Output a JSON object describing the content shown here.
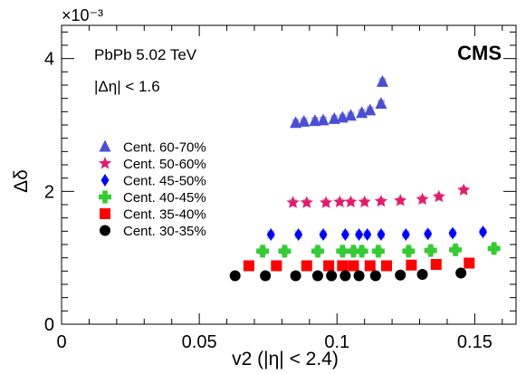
{
  "chart_data": {
    "type": "scatter",
    "xlabel": "v2 (|η| < 2.4)",
    "ylabel": "Δδ",
    "y_multiplier": "×10⁻³",
    "xlim": [
      0,
      0.165
    ],
    "ylim": [
      0,
      4.5
    ],
    "x_ticks": [
      0,
      0.05,
      0.1,
      0.15
    ],
    "x_tick_labels": [
      "0",
      "0.05",
      "0.1",
      "0.15"
    ],
    "y_ticks": [
      0,
      2,
      4
    ],
    "y_tick_labels": [
      "0",
      "2",
      "4"
    ],
    "grid": false,
    "legend_position": "left",
    "annotations": [
      "PbPb 5.02 TeV",
      "|Δη| < 1.6"
    ],
    "experiment_label": "CMS",
    "series": [
      {
        "name": "Cent. 60-70%",
        "marker": "triangle",
        "color": "#4a4ed6",
        "x": [
          0.085,
          0.088,
          0.092,
          0.095,
          0.099,
          0.102,
          0.105,
          0.109,
          0.112,
          0.116,
          0.1165
        ],
        "y": [
          3.03,
          3.05,
          3.06,
          3.07,
          3.09,
          3.11,
          3.14,
          3.18,
          3.22,
          3.32,
          3.65
        ]
      },
      {
        "name": "Cent. 50-60%",
        "marker": "star",
        "color": "#e6196e",
        "x": [
          0.084,
          0.089,
          0.096,
          0.101,
          0.105,
          0.11,
          0.116,
          0.123,
          0.131,
          0.137,
          0.146
        ],
        "y": [
          1.83,
          1.83,
          1.83,
          1.84,
          1.84,
          1.84,
          1.85,
          1.86,
          1.88,
          1.92,
          2.02
        ]
      },
      {
        "name": "Cent. 45-50%",
        "marker": "diamond",
        "color": "#0000ff",
        "x": [
          0.076,
          0.086,
          0.095,
          0.103,
          0.108,
          0.111,
          0.116,
          0.125,
          0.133,
          0.142,
          0.153
        ],
        "y": [
          1.35,
          1.35,
          1.35,
          1.35,
          1.35,
          1.35,
          1.35,
          1.35,
          1.36,
          1.37,
          1.39
        ]
      },
      {
        "name": "Cent. 40-45%",
        "marker": "cross",
        "color": "#33cc33",
        "x": [
          0.073,
          0.081,
          0.093,
          0.102,
          0.106,
          0.109,
          0.115,
          0.126,
          0.134,
          0.143,
          0.157
        ],
        "y": [
          1.1,
          1.1,
          1.1,
          1.1,
          1.1,
          1.1,
          1.1,
          1.1,
          1.11,
          1.12,
          1.14
        ]
      },
      {
        "name": "Cent. 35-40%",
        "marker": "square",
        "color": "#ff0000",
        "x": [
          0.068,
          0.078,
          0.089,
          0.097,
          0.102,
          0.106,
          0.112,
          0.118,
          0.127,
          0.136,
          0.148
        ],
        "y": [
          0.88,
          0.88,
          0.88,
          0.88,
          0.88,
          0.88,
          0.88,
          0.88,
          0.89,
          0.9,
          0.92
        ]
      },
      {
        "name": "Cent. 30-35%",
        "marker": "circle",
        "color": "#000000",
        "x": [
          0.063,
          0.074,
          0.085,
          0.093,
          0.098,
          0.103,
          0.108,
          0.114,
          0.123,
          0.131,
          0.145
        ],
        "y": [
          0.73,
          0.73,
          0.73,
          0.73,
          0.73,
          0.73,
          0.73,
          0.73,
          0.74,
          0.75,
          0.77
        ]
      }
    ]
  }
}
